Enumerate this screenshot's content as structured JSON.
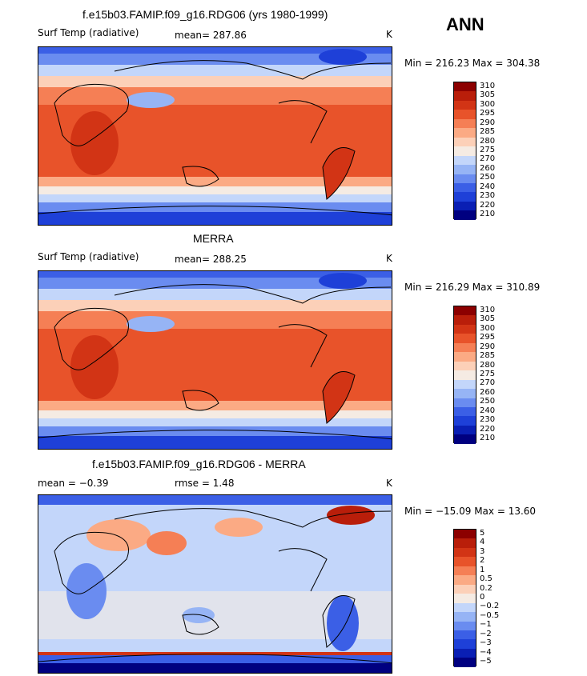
{
  "season": "ANN",
  "colors": {
    "temp": [
      "#000080",
      "#0a1fb4",
      "#1e40d8",
      "#3b5fe6",
      "#6a8cf0",
      "#96b4f5",
      "#c3d6fa",
      "#f5ebe3",
      "#fcd0b8",
      "#fbaa84",
      "#f57f55",
      "#e8532a",
      "#d23415",
      "#b91e0a",
      "#8c0000"
    ],
    "diff": [
      "#000080",
      "#0a1fb4",
      "#1e40d8",
      "#3b5fe6",
      "#6a8cf0",
      "#96b4f5",
      "#c3d6fa",
      "#f5ebe3",
      "#fcd0b8",
      "#fbaa84",
      "#f57f55",
      "#e8532a",
      "#d23415",
      "#b91e0a",
      "#8c0000"
    ]
  },
  "panels": [
    {
      "title": "f.e15b03.FAMIP.f09_g16.RDG06 (yrs 1980-1999)",
      "left_label": "Surf Temp (radiative)",
      "stat_label": "mean= 287.86",
      "stat2_label": "",
      "units": "K",
      "minmax": "Min = 216.23 Max = 304.38",
      "colorbar_labels": [
        "310",
        "305",
        "300",
        "295",
        "290",
        "285",
        "280",
        "275",
        "270",
        "260",
        "250",
        "240",
        "230",
        "220",
        "210"
      ],
      "palette": "temp"
    },
    {
      "title": "MERRA",
      "left_label": "Surf Temp (radiative)",
      "stat_label": "mean= 288.25",
      "stat2_label": "",
      "units": "K",
      "minmax": "Min = 216.29 Max = 310.89",
      "colorbar_labels": [
        "310",
        "305",
        "300",
        "295",
        "290",
        "285",
        "280",
        "275",
        "270",
        "260",
        "250",
        "240",
        "230",
        "220",
        "210"
      ],
      "palette": "temp"
    },
    {
      "title": "f.e15b03.FAMIP.f09_g16.RDG06 - MERRA",
      "left_label": "mean =  −0.39",
      "stat_label": "rmse =    1.48",
      "stat2_label": "",
      "units": "K",
      "minmax": "Min = −15.09 Max =  13.60",
      "colorbar_labels": [
        "5",
        "4",
        "3",
        "2",
        "1",
        "0.5",
        "0.2",
        "0",
        "−0.2",
        "−0.5",
        "−1",
        "−2",
        "−3",
        "−4",
        "−5"
      ],
      "palette": "diff"
    }
  ]
}
